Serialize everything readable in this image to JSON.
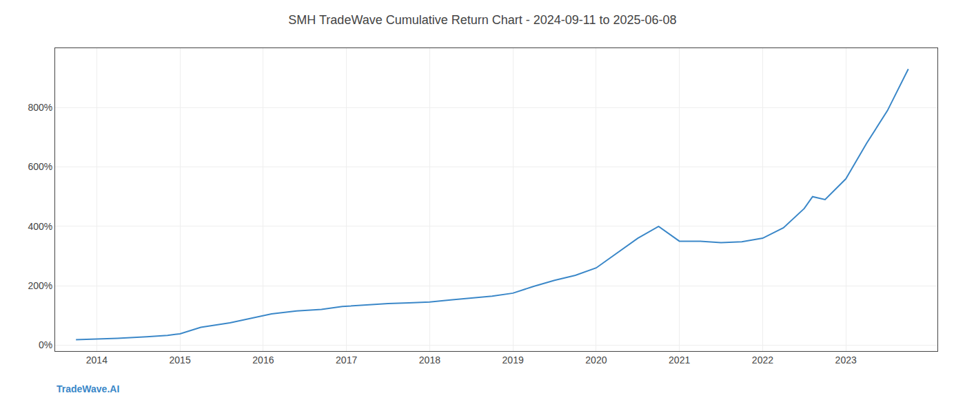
{
  "chart_data": {
    "type": "line",
    "title": "SMH TradeWave Cumulative Return Chart - 2024-09-11 to 2025-06-08",
    "annotations": [
      {
        "text": "TradeWave.AI"
      }
    ],
    "x": [
      2013.75,
      2014.0,
      2014.25,
      2014.6,
      2014.85,
      2015.0,
      2015.25,
      2015.6,
      2015.9,
      2016.1,
      2016.4,
      2016.7,
      2016.95,
      2017.25,
      2017.5,
      2017.75,
      2018.0,
      2018.25,
      2018.5,
      2018.75,
      2019.0,
      2019.25,
      2019.5,
      2019.75,
      2020.0,
      2020.25,
      2020.5,
      2020.75,
      2020.85,
      2021.0,
      2021.25,
      2021.5,
      2021.75,
      2022.0,
      2022.25,
      2022.5,
      2022.6,
      2022.75,
      2023.0,
      2023.25,
      2023.5,
      2023.75
    ],
    "values": [
      18,
      20,
      23,
      28,
      33,
      38,
      60,
      75,
      92,
      105,
      115,
      120,
      130,
      135,
      140,
      142,
      145,
      152,
      158,
      165,
      175,
      198,
      218,
      235,
      260,
      310,
      360,
      400,
      380,
      350,
      350,
      345,
      348,
      360,
      395,
      460,
      500,
      490,
      560,
      680,
      790,
      930
    ],
    "color": "#3a87c8",
    "xlim": [
      2013.5,
      2024.1
    ],
    "xticks": [
      2014,
      2015,
      2016,
      2017,
      2018,
      2019,
      2020,
      2021,
      2022,
      2023
    ],
    "ylim": [
      -20,
      1000
    ],
    "yticks": [
      {
        "value": 0,
        "label": "0%"
      },
      {
        "value": 200,
        "label": "200%"
      },
      {
        "value": 400,
        "label": "400%"
      },
      {
        "value": 600,
        "label": "600%"
      },
      {
        "value": 800,
        "label": "800%"
      }
    ],
    "grid": true
  }
}
